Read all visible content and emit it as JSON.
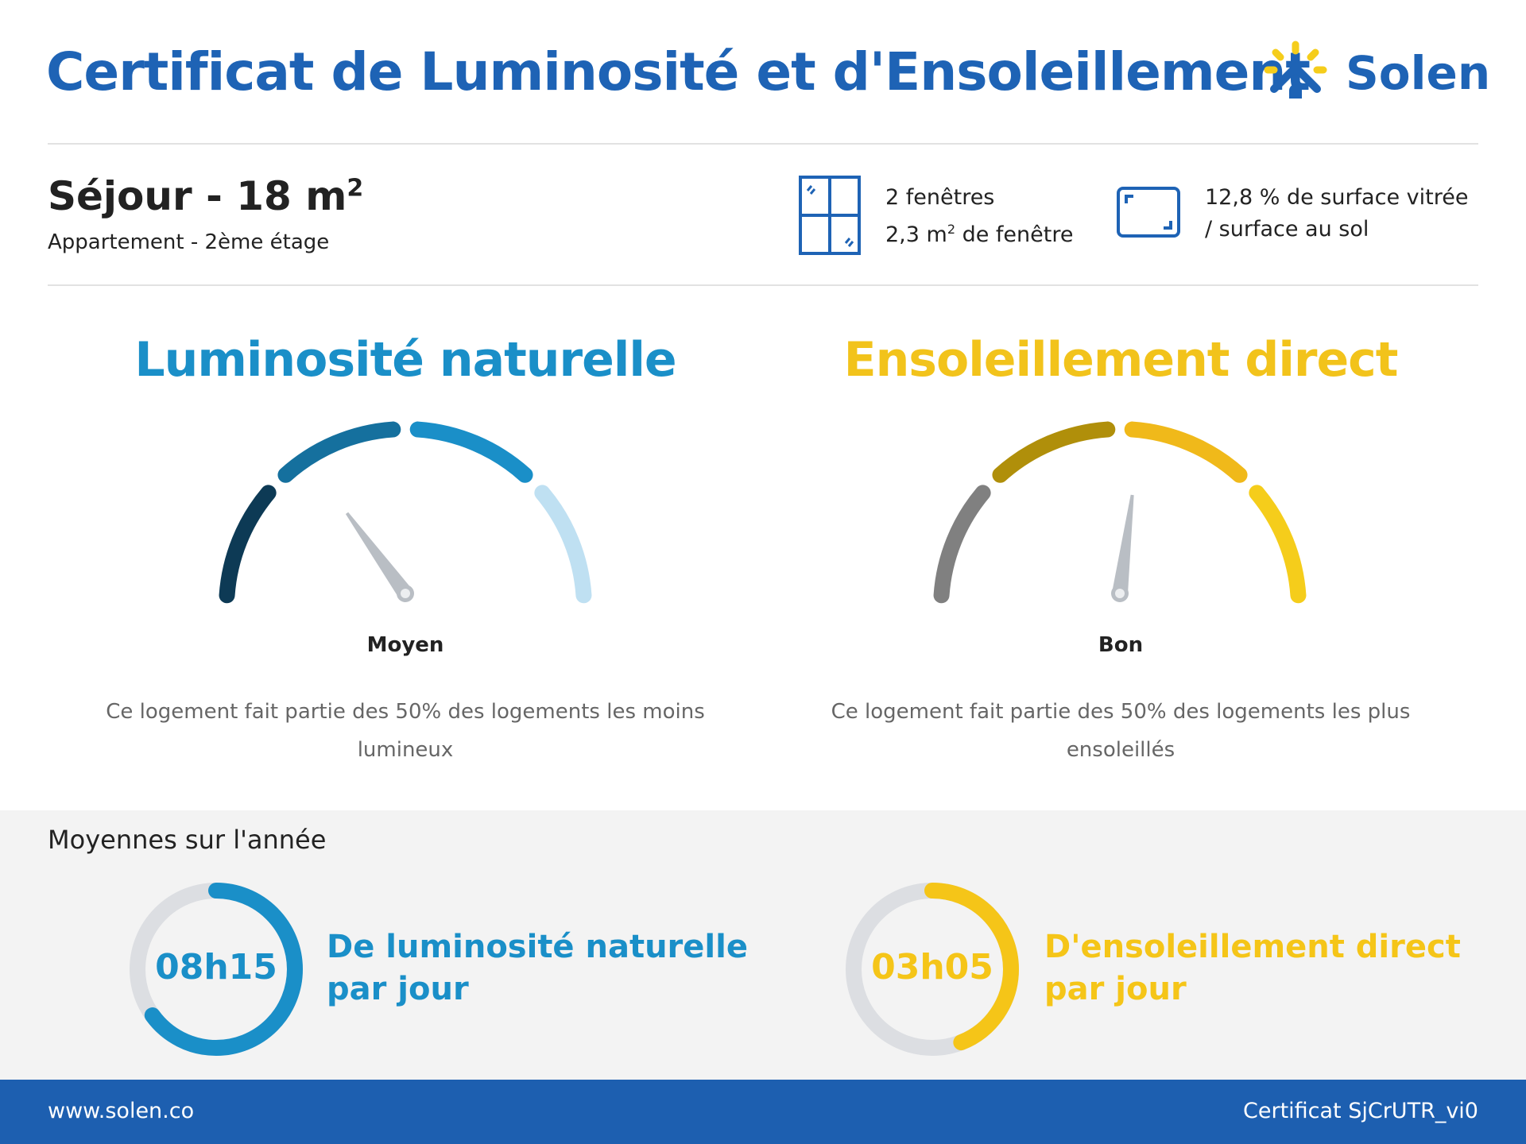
{
  "header": {
    "title": "Certificat de Luminosité et d'Ensoleillement",
    "logo_text": "Solen",
    "brand_color": "#1e63b5",
    "logo_sun_color": "#f5cd1b"
  },
  "room": {
    "name": "Séjour - 18 m",
    "name_exp": "2",
    "subtitle": "Appartement - 2ème étage",
    "windows_icon": "window-icon",
    "windows_line1": "2 fenêtres",
    "windows_line2_pre": "2,3 m",
    "windows_line2_exp": "2",
    "windows_line2_post": " de fenêtre",
    "surface_icon": "surface-frame-icon",
    "surface_line1": "12,8 % de surface vitrée",
    "surface_line2": "/ surface au sol"
  },
  "gauges": [
    {
      "title": "Luminosité naturelle",
      "title_color": "#1a8fc8",
      "segment_colors": [
        "#0d3a55",
        "#15709e",
        "#1a8fc8",
        "#bfe0f2"
      ],
      "level": 0.3,
      "rating": "Moyen",
      "description": "Ce logement fait partie des 50% des logements les moins lumineux"
    },
    {
      "title": "Ensoleillement direct",
      "title_color": "#f2c31b",
      "segment_colors": [
        "#808080",
        "#b08f0a",
        "#f0b91a",
        "#f5cd1b"
      ],
      "level": 0.54,
      "rating": "Bon",
      "description": "Ce logement fait partie des 50% des logements les plus ensoleillés"
    }
  ],
  "averages": {
    "title": "Moyennes sur l'année",
    "items": [
      {
        "value": "08h15",
        "label_line1": "De luminosité naturelle",
        "label_line2": "par jour",
        "color": "#1a8fc8",
        "progress": 0.65
      },
      {
        "value": "03h05",
        "label_line1": "D'ensoleillement direct",
        "label_line2": "par jour",
        "color": "#f5c518",
        "progress": 0.44
      }
    ]
  },
  "footer": {
    "website": "www.solen.co",
    "certificate_id": "Certificat SjCrUTR_vi0"
  }
}
